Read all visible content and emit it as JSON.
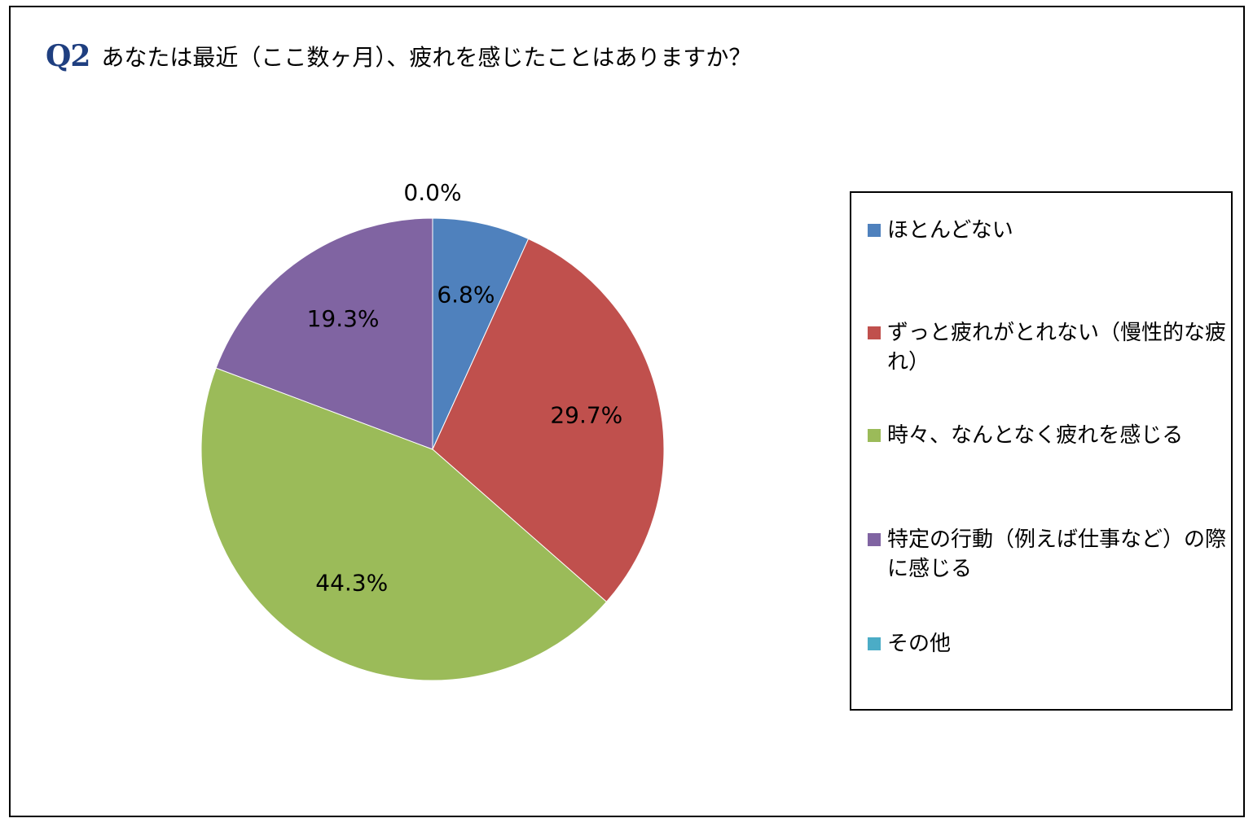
{
  "header": {
    "q_label": "Q2",
    "question": "あなたは最近（ここ数ヶ月）、疲れを感じたことはありますか？"
  },
  "colors": {
    "q_label": "#1f3f80",
    "border": "#000000"
  },
  "chart_data": {
    "type": "pie",
    "title": "",
    "legend_position": "right",
    "slices": [
      {
        "name": "ほとんどない",
        "value": 6.8,
        "label": "6.8%",
        "color": "#4f81bd"
      },
      {
        "name": "ずっと疲れがとれない（慢性的な疲れ）",
        "value": 29.7,
        "label": "29.7%",
        "color": "#c0504d"
      },
      {
        "name": "時々、なんとなく疲れを感じる",
        "value": 44.3,
        "label": "44.3%",
        "color": "#9bbb59"
      },
      {
        "name": "特定の行動（例えば仕事など）の際に感じる",
        "value": 19.3,
        "label": "19.3%",
        "color": "#8064a2"
      },
      {
        "name": "その他",
        "value": 0.0,
        "label": "0.0%",
        "color": "#4bacc6"
      }
    ]
  }
}
